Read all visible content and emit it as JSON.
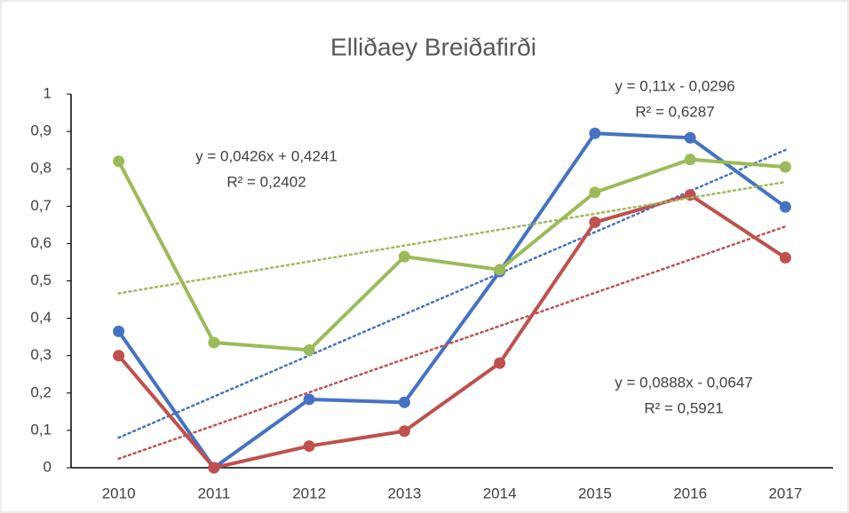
{
  "chart_data": {
    "type": "line",
    "title": "Elliðaey Breiðafirði",
    "categories": [
      "2010",
      "2011",
      "2012",
      "2013",
      "2014",
      "2015",
      "2016",
      "2017"
    ],
    "ylim": [
      0,
      1
    ],
    "yticks": [
      0,
      {
        "value": 0.1,
        "label": "0,1"
      },
      {
        "value": 0.2,
        "label": "0,2"
      },
      {
        "value": 0.3,
        "label": "0,3"
      },
      {
        "value": 0.4,
        "label": "0,4"
      },
      {
        "value": 0.5,
        "label": "0,5"
      },
      {
        "value": 0.6,
        "label": "0,6"
      },
      {
        "value": 0.7,
        "label": "0,7"
      },
      {
        "value": 0.8,
        "label": "0,8"
      },
      {
        "value": 0.9,
        "label": "0,9"
      },
      1
    ],
    "grid": false,
    "series": [
      {
        "color": "#4472c4",
        "values": [
          0.365,
          0.0,
          0.183,
          0.175,
          0.525,
          0.895,
          0.883,
          0.698
        ],
        "trendline": {
          "slope": 0.11,
          "intercept": -0.0296,
          "equation": "y = 0,11x - 0,0296",
          "r_squared": "R² = 0,6287"
        }
      },
      {
        "color": "#c0504d",
        "values": [
          0.3,
          0.0,
          0.058,
          0.098,
          0.28,
          0.657,
          0.73,
          0.562
        ],
        "trendline": {
          "slope": 0.0888,
          "intercept": -0.0647,
          "equation": "y = 0,0888x - 0,0647",
          "r_squared": "R² = 0,5921"
        }
      },
      {
        "color": "#9bbb59",
        "values": [
          0.82,
          0.335,
          0.315,
          0.565,
          0.53,
          0.737,
          0.825,
          0.805
        ],
        "trendline": {
          "slope": 0.0426,
          "intercept": 0.4241,
          "equation": "y = 0,0426x + 0,4241",
          "r_squared": "R² = 0,2402"
        }
      }
    ]
  }
}
